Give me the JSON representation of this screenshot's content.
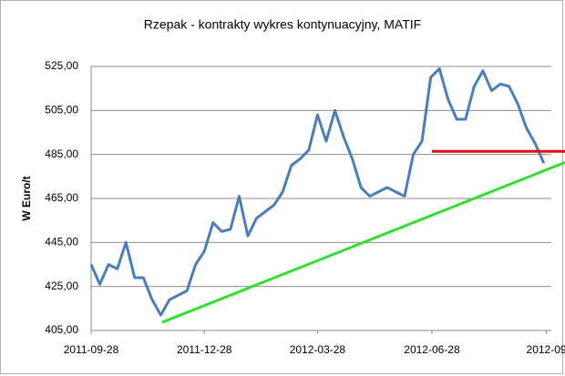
{
  "chart_data": {
    "type": "line",
    "title": "Rzepak - kontrakty wykres kontynuacyjny, MATIF",
    "y_label": "W Euro/t",
    "x": [
      "2011-09-28",
      "2011-10-05",
      "2011-10-12",
      "2011-10-19",
      "2011-10-26",
      "2011-11-02",
      "2011-11-09",
      "2011-11-16",
      "2011-11-23",
      "2011-11-30",
      "2011-12-07",
      "2011-12-14",
      "2011-12-21",
      "2011-12-28",
      "2012-01-04",
      "2012-01-11",
      "2012-01-18",
      "2012-01-25",
      "2012-02-01",
      "2012-02-08",
      "2012-02-15",
      "2012-02-22",
      "2012-02-29",
      "2012-03-07",
      "2012-03-14",
      "2012-03-21",
      "2012-03-28",
      "2012-04-04",
      "2012-04-11",
      "2012-04-18",
      "2012-04-25",
      "2012-05-02",
      "2012-05-09",
      "2012-05-16",
      "2012-05-23",
      "2012-05-30",
      "2012-06-06",
      "2012-06-13",
      "2012-06-20",
      "2012-06-27",
      "2012-07-04",
      "2012-07-11",
      "2012-07-18",
      "2012-07-25",
      "2012-08-01",
      "2012-08-08",
      "2012-08-15",
      "2012-08-22",
      "2012-08-29",
      "2012-09-05",
      "2012-09-12",
      "2012-09-19",
      "2012-09-26"
    ],
    "series": [
      {
        "color": "#4a7ebb",
        "values": [
          435,
          426,
          435,
          433,
          445,
          429,
          429,
          419,
          412,
          419,
          421,
          423,
          435,
          441,
          454,
          450,
          451,
          466,
          448,
          456,
          459,
          462,
          468,
          480,
          483,
          487,
          503,
          491,
          505,
          493,
          483,
          470,
          466,
          468,
          470,
          468,
          466,
          485,
          491,
          520,
          524,
          510,
          501,
          501,
          516,
          523,
          514,
          517,
          516,
          508,
          497,
          490,
          481
        ]
      }
    ],
    "trend_lines": [
      {
        "color": "#33dd33",
        "x": [
          "2011-11-24",
          "2012-10-13"
        ],
        "y": [
          408.7,
          481.4
        ]
      },
      {
        "color": "#dd1111",
        "x": [
          "2012-06-28",
          "2012-10-13"
        ],
        "y": [
          486.4,
          486.4
        ]
      }
    ],
    "xlim": [
      "2011-09-28",
      "2012-10-02"
    ],
    "xticks": [
      "2011-09-28",
      "2011-12-28",
      "2012-03-28",
      "2012-06-28",
      {
        "value": "2012-09-28",
        "label": "2012-09"
      }
    ],
    "ylim": [
      405,
      525
    ],
    "yticks": [
      {
        "value": 405,
        "label": "405,00"
      },
      {
        "value": 425,
        "label": "425,00"
      },
      {
        "value": 445,
        "label": "445,00"
      },
      {
        "value": 465,
        "label": "465,00"
      },
      {
        "value": 485,
        "label": "485,00"
      },
      {
        "value": 505,
        "label": "505,00"
      },
      {
        "value": 525,
        "label": "525,00"
      }
    ],
    "grid": true
  }
}
